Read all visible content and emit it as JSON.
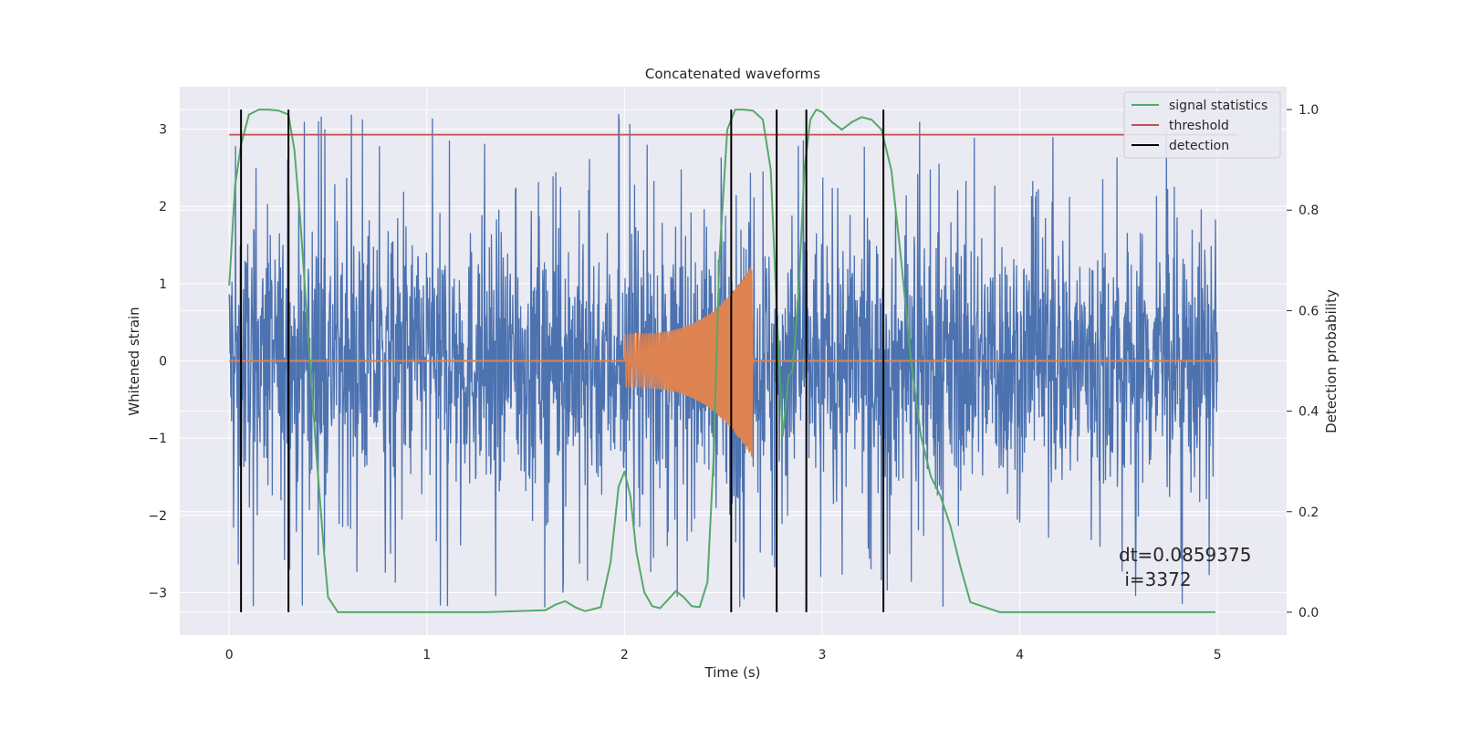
{
  "chart_data": {
    "type": "line",
    "title": "Concatenated waveforms",
    "xlabel": "Time (s)",
    "ylabel": "Whitened strain",
    "y2label": "Detection probability",
    "xlim": [
      -0.25,
      5.35
    ],
    "ylim": [
      -3.55,
      3.55
    ],
    "y2lim": [
      -0.0455,
      1.0455
    ],
    "grid": true,
    "legend_position": "top-right",
    "xticks": [
      "0",
      "1",
      "2",
      "3",
      "4",
      "5"
    ],
    "yticks": [
      "−3",
      "−2",
      "−1",
      "0",
      "1",
      "2",
      "3"
    ],
    "y2ticks": [
      "0.0",
      "0.2",
      "0.4",
      "0.6",
      "0.8",
      "1.0"
    ],
    "colors": {
      "strain": "#4c72b0",
      "waveform": "#dd8452",
      "signal_statistics": "#55a868",
      "threshold": "#c44e52",
      "detection": "#000000",
      "background": "#eaeaf2",
      "grid": "#ffffff"
    },
    "series": [
      {
        "name": "signal statistics",
        "axis": "right",
        "x": [
          0.0,
          0.03,
          0.06,
          0.1,
          0.15,
          0.2,
          0.25,
          0.3,
          0.33,
          0.36,
          0.4,
          0.44,
          0.48,
          0.5,
          0.55,
          0.7,
          1.0,
          1.3,
          1.6,
          1.65,
          1.7,
          1.75,
          1.8,
          1.88,
          1.93,
          1.97,
          2.0,
          2.03,
          2.06,
          2.1,
          2.14,
          2.18,
          2.22,
          2.26,
          2.3,
          2.34,
          2.38,
          2.42,
          2.45,
          2.48,
          2.52,
          2.56,
          2.6,
          2.65,
          2.7,
          2.74,
          2.77,
          2.8,
          2.83,
          2.85,
          2.88,
          2.91,
          2.94,
          2.97,
          3.0,
          3.05,
          3.1,
          3.15,
          3.2,
          3.25,
          3.3,
          3.35,
          3.4,
          3.45,
          3.5,
          3.55,
          3.6,
          3.65,
          3.7,
          3.75,
          3.9,
          4.2,
          4.5,
          4.8,
          4.99
        ],
        "y": [
          0.65,
          0.85,
          0.93,
          0.99,
          1.0,
          1.0,
          0.998,
          0.99,
          0.92,
          0.78,
          0.55,
          0.32,
          0.12,
          0.03,
          0.0,
          0.0,
          0.0,
          0.0,
          0.004,
          0.015,
          0.022,
          0.01,
          0.002,
          0.01,
          0.1,
          0.25,
          0.28,
          0.23,
          0.12,
          0.04,
          0.012,
          0.008,
          0.025,
          0.042,
          0.03,
          0.012,
          0.01,
          0.06,
          0.3,
          0.7,
          0.96,
          1.0,
          1.0,
          0.998,
          0.98,
          0.88,
          0.6,
          0.35,
          0.47,
          0.48,
          0.63,
          0.88,
          0.98,
          1.0,
          0.995,
          0.975,
          0.96,
          0.975,
          0.985,
          0.98,
          0.96,
          0.88,
          0.7,
          0.5,
          0.35,
          0.27,
          0.23,
          0.17,
          0.09,
          0.02,
          0.0,
          0.0,
          0.0,
          0.0,
          0.0
        ]
      },
      {
        "name": "threshold",
        "axis": "right",
        "x": [
          0.0,
          5.1
        ],
        "y": [
          0.95,
          0.95
        ]
      },
      {
        "name": "detection",
        "axis": "right",
        "type": "vlines",
        "x": [
          0.06,
          0.3,
          2.54,
          2.77,
          2.92,
          3.31
        ],
        "ymin": 0.0,
        "ymax": 1.0
      },
      {
        "name": "strain",
        "axis": "left",
        "x_range": [
          0.0,
          5.0
        ],
        "y_range": [
          -3.25,
          3.25
        ],
        "spike_min": [
          -3.25,
          -3.05,
          -2.6
        ],
        "spike_max": [
          3.25,
          3.15,
          2.9
        ]
      },
      {
        "name": "waveform",
        "axis": "left",
        "x_range": [
          2.0,
          2.65
        ],
        "amplitude_start": 0.35,
        "amplitude_peak": 1.25,
        "peak_time": 2.645,
        "baseline": 0.0
      }
    ],
    "legend": [
      "signal statistics",
      "threshold",
      "detection"
    ],
    "annotation": [
      "dt=0.0859375",
      " i=3372"
    ]
  }
}
